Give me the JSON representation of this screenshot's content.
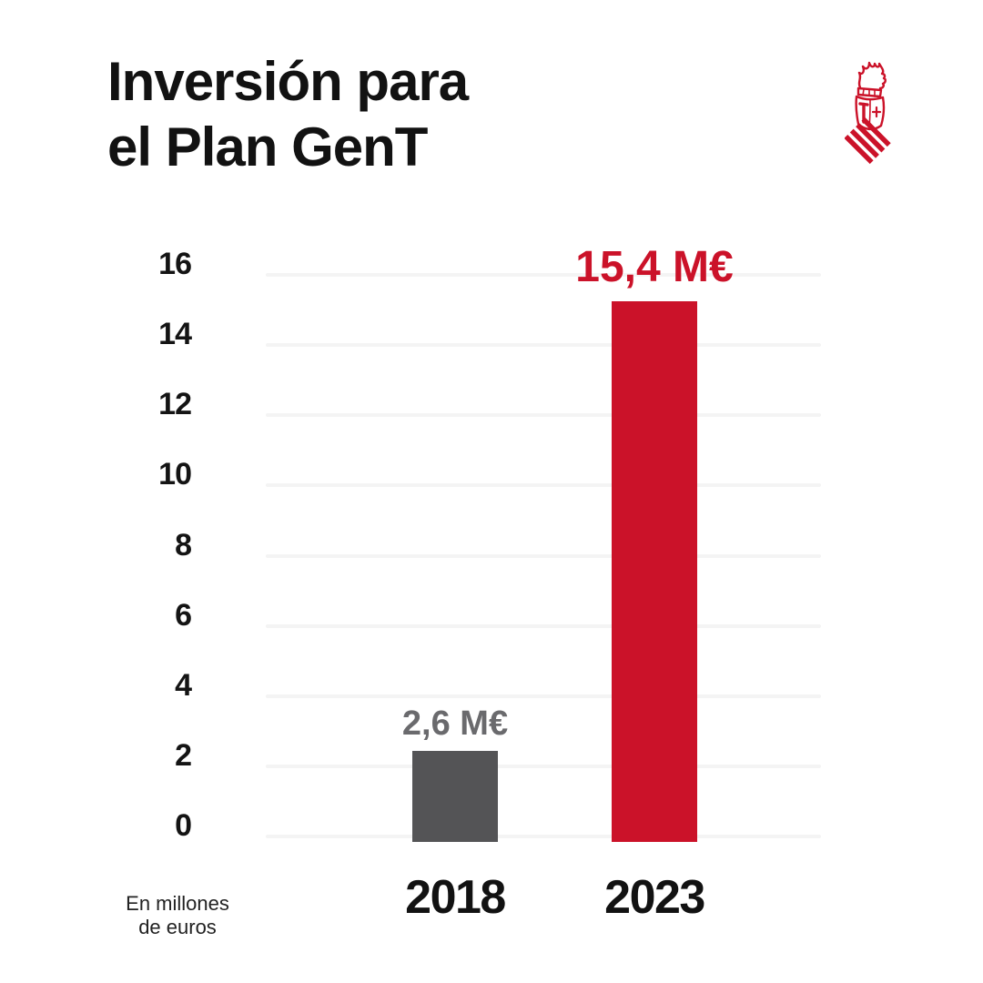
{
  "title": {
    "line1": "Inversión para",
    "line2": "el Plan GenT"
  },
  "logo": {
    "name": "Generalitat Valenciana crest",
    "color": "#cb1229"
  },
  "footnote": {
    "line1": "En millones",
    "line2": "de euros"
  },
  "colors": {
    "background": "#ffffff",
    "text": "#121212",
    "accent_red": "#cb1229",
    "neutral_gray": "#545456",
    "gray_label": "#6a6a6d",
    "gridline": "#f4f4f4"
  },
  "chart_data": {
    "type": "bar",
    "title": "Inversión para el Plan GenT",
    "categories": [
      "2018",
      "2023"
    ],
    "values": [
      2.6,
      15.4
    ],
    "value_labels": [
      "2,6 M€",
      "15,4 M€"
    ],
    "bar_colors": [
      "#545456",
      "#cb1229"
    ],
    "value_label_colors": [
      "#6a6a6d",
      "#cb1229"
    ],
    "unit_note": "En millones de euros",
    "xlabel": "",
    "ylabel": "",
    "ylim": [
      0,
      16
    ],
    "yticks": [
      0,
      2,
      4,
      6,
      8,
      10,
      12,
      14,
      16
    ],
    "grid": true,
    "legend": false
  }
}
